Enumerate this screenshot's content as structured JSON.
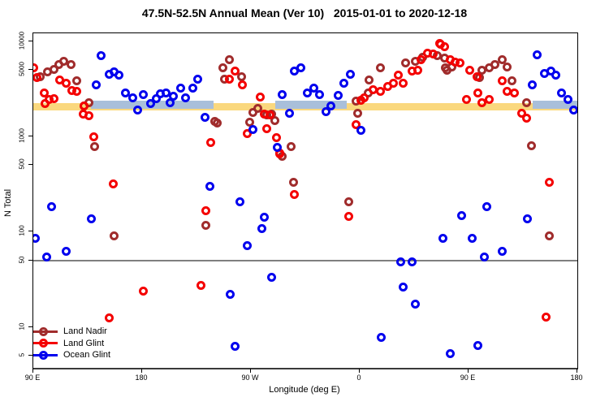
{
  "title": "47.5N-52.5N Annual Mean (Ver 10)   2015-01-01 to 2020-12-18",
  "axes": {
    "x": {
      "label": "Longitude (deg E)",
      "range": [
        90,
        540
      ],
      "ticks": [
        {
          "pos": 90,
          "label": "90 E"
        },
        {
          "pos": 180,
          "label": "180"
        },
        {
          "pos": 270,
          "label": "90 W"
        },
        {
          "pos": 360,
          "label": "0"
        },
        {
          "pos": 450,
          "label": "90 E"
        },
        {
          "pos": 540,
          "label": "180"
        }
      ]
    },
    "y": {
      "label": "N Total",
      "scale": "log",
      "range": [
        4.2,
        12000
      ],
      "ticks": [
        {
          "value": 10000,
          "label": "10000"
        },
        {
          "value": 5000,
          "label": "5000"
        },
        {
          "value": 1000,
          "label": "1000"
        },
        {
          "value": 500,
          "label": "500"
        },
        {
          "value": 100,
          "label": "100"
        },
        {
          "value": 50,
          "label": "50"
        },
        {
          "value": 10,
          "label": "10"
        },
        {
          "value": 5,
          "label": "5"
        }
      ]
    }
  },
  "legend": [
    {
      "label": "Land Nadir",
      "color": "#A02C2C"
    },
    {
      "label": "Land Glint",
      "color": "#F40000"
    },
    {
      "label": "Ocean Glint",
      "color": "#0000EE"
    }
  ],
  "reference": {
    "hline_value": 50,
    "hline_color": "#7f7f7f",
    "land_mean_band": {
      "color": "#FAD87E",
      "lon_from": 90,
      "lon_to": 540,
      "value_low": 1880,
      "value_high": 2250
    },
    "ocean_mean_band": {
      "color": "#A9BFDA",
      "value_low": 1960,
      "value_high": 2380,
      "segments": [
        [
          138,
          239
        ],
        [
          290,
          349
        ],
        [
          503,
          540
        ]
      ]
    }
  },
  "chart_data": {
    "type": "scatter",
    "title": "47.5N-52.5N Annual Mean (Ver 10)   2015-01-01 to 2020-12-18",
    "xlabel": "Longitude (deg E)",
    "ylabel": "N Total",
    "x_unit": "degrees east, axis unwrapped 90..540",
    "series": [
      {
        "name": "Land Nadir",
        "color": "#A02C2C",
        "points": [
          [
            96,
            4280
          ],
          [
            102,
            4740
          ],
          [
            107,
            5030
          ],
          [
            111,
            5660
          ],
          [
            115,
            6240
          ],
          [
            121,
            5660
          ],
          [
            126,
            3820
          ],
          [
            132,
            2080
          ],
          [
            136,
            2290
          ],
          [
            141,
            778
          ],
          [
            157,
            90
          ],
          [
            240,
            1440
          ],
          [
            242,
            1380
          ],
          [
            247,
            5330
          ],
          [
            248,
            4040
          ],
          [
            252,
            6380
          ],
          [
            262,
            4290
          ],
          [
            269,
            1410
          ],
          [
            272,
            1790
          ],
          [
            276,
            1960
          ],
          [
            283,
            1680
          ],
          [
            287,
            1720
          ],
          [
            290,
            1470
          ],
          [
            296,
            616
          ],
          [
            303,
            778
          ],
          [
            233,
            117
          ],
          [
            305,
            333
          ],
          [
            351,
            207
          ],
          [
            357,
            2340
          ],
          [
            358,
            1760
          ],
          [
            367,
            2900
          ],
          [
            368,
            3900
          ],
          [
            377,
            5230
          ],
          [
            398,
            5990
          ],
          [
            406,
            6240
          ],
          [
            412,
            6770
          ],
          [
            424,
            7040
          ],
          [
            430,
            6620
          ],
          [
            431,
            5230
          ],
          [
            432,
            5010
          ],
          [
            436,
            5430
          ],
          [
            459,
            4140
          ],
          [
            461,
            5010
          ],
          [
            467,
            5230
          ],
          [
            472,
            5660
          ],
          [
            478,
            6380
          ],
          [
            482,
            5430
          ],
          [
            486,
            3820
          ],
          [
            498,
            2290
          ],
          [
            502,
            808
          ],
          [
            517,
            90
          ]
        ]
      },
      {
        "name": "Land Glint",
        "color": "#F40000",
        "points": [
          [
            90,
            5230
          ],
          [
            93,
            4140
          ],
          [
            99,
            2900
          ],
          [
            100,
            2240
          ],
          [
            103,
            2440
          ],
          [
            107,
            2490
          ],
          [
            112,
            3900
          ],
          [
            117,
            3670
          ],
          [
            122,
            3020
          ],
          [
            126,
            2960
          ],
          [
            131,
            1720
          ],
          [
            132,
            2100
          ],
          [
            136,
            1660
          ],
          [
            140,
            995
          ],
          [
            156,
            320
          ],
          [
            153,
            12.5
          ],
          [
            181,
            24
          ],
          [
            229,
            27.5
          ],
          [
            233,
            167
          ],
          [
            237,
            874
          ],
          [
            252,
            3990
          ],
          [
            257,
            4870
          ],
          [
            263,
            3470
          ],
          [
            267,
            1080
          ],
          [
            278,
            2590
          ],
          [
            281,
            1720
          ],
          [
            283,
            1220
          ],
          [
            286,
            1680
          ],
          [
            291,
            971
          ],
          [
            294,
            672
          ],
          [
            294,
            662
          ],
          [
            306,
            248
          ],
          [
            351,
            146
          ],
          [
            357,
            1330
          ],
          [
            361,
            2390
          ],
          [
            364,
            2540
          ],
          [
            371,
            3080
          ],
          [
            377,
            2960
          ],
          [
            383,
            3330
          ],
          [
            388,
            3670
          ],
          [
            392,
            4420
          ],
          [
            396,
            3670
          ],
          [
            403,
            4870
          ],
          [
            408,
            5010
          ],
          [
            411,
            6380
          ],
          [
            416,
            7480
          ],
          [
            421,
            7330
          ],
          [
            426,
            9430
          ],
          [
            427,
            9250
          ],
          [
            430,
            8880
          ],
          [
            435,
            6380
          ],
          [
            439,
            6080
          ],
          [
            443,
            5990
          ],
          [
            448,
            2440
          ],
          [
            451,
            5010
          ],
          [
            457,
            4290
          ],
          [
            458,
            2900
          ],
          [
            461,
            2290
          ],
          [
            467,
            2440
          ],
          [
            478,
            3820
          ],
          [
            482,
            2960
          ],
          [
            488,
            2900
          ],
          [
            494,
            1760
          ],
          [
            498,
            1550
          ],
          [
            514,
            12.7
          ],
          [
            517,
            328
          ]
        ]
      },
      {
        "name": "Ocean Glint",
        "color": "#0000EE",
        "points": [
          [
            92,
            86
          ],
          [
            101,
            54
          ],
          [
            105,
            185
          ],
          [
            117,
            62
          ],
          [
            138,
            138
          ],
          [
            142,
            3530
          ],
          [
            146,
            7160
          ],
          [
            153,
            4550
          ],
          [
            157,
            4740
          ],
          [
            161,
            4420
          ],
          [
            166,
            2900
          ],
          [
            172,
            2540
          ],
          [
            176,
            1890
          ],
          [
            181,
            2750
          ],
          [
            187,
            2240
          ],
          [
            192,
            2490
          ],
          [
            195,
            2810
          ],
          [
            200,
            2860
          ],
          [
            203,
            2290
          ],
          [
            206,
            2650
          ],
          [
            212,
            3260
          ],
          [
            216,
            2540
          ],
          [
            222,
            3260
          ],
          [
            226,
            3990
          ],
          [
            232,
            1590
          ],
          [
            236,
            301
          ],
          [
            253,
            22
          ],
          [
            257,
            6.3
          ],
          [
            261,
            207
          ],
          [
            267,
            71
          ],
          [
            272,
            1180
          ],
          [
            279,
            109
          ],
          [
            281,
            143
          ],
          [
            287,
            33
          ],
          [
            292,
            763
          ],
          [
            296,
            2750
          ],
          [
            302,
            1760
          ],
          [
            306,
            4870
          ],
          [
            311,
            5230
          ],
          [
            317,
            2900
          ],
          [
            322,
            3260
          ],
          [
            327,
            2750
          ],
          [
            332,
            1820
          ],
          [
            336,
            2080
          ],
          [
            342,
            2700
          ],
          [
            347,
            3670
          ],
          [
            352,
            4480
          ],
          [
            361,
            1160
          ],
          [
            378,
            7.8
          ],
          [
            394,
            48
          ],
          [
            396,
            26
          ],
          [
            403,
            48
          ],
          [
            406,
            17.5
          ],
          [
            429,
            85
          ],
          [
            435,
            5.2
          ],
          [
            444,
            149
          ],
          [
            453,
            85
          ],
          [
            458,
            6.4
          ],
          [
            463,
            54
          ],
          [
            465,
            185
          ],
          [
            478,
            62
          ],
          [
            499,
            138
          ],
          [
            503,
            3530
          ],
          [
            507,
            7290
          ],
          [
            513,
            4610
          ],
          [
            518,
            4870
          ],
          [
            522,
            4420
          ],
          [
            527,
            2900
          ],
          [
            532,
            2440
          ],
          [
            537,
            1890
          ]
        ]
      }
    ]
  }
}
